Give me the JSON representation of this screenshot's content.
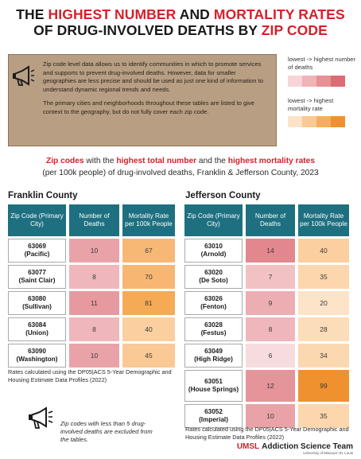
{
  "title": {
    "line1_pre": "THE ",
    "line1_red1": "HIGHEST NUMBER",
    "line1_mid": " AND ",
    "line1_red2": "MORTALITY RATES",
    "line2_pre": "OF DRUG-INVOLVED DEATHS BY ",
    "line2_red": "ZIP CODE"
  },
  "intro": {
    "para1": "Zip code level data allows us to identify communities in which to promote services and supports to prevent drug-involved deaths. However, data for smaller geographies are less precise and should be used as just one kind of information to understand dynamic regional trends and needs.",
    "para2": "The primary cities and neighborhoods throughout these tables are listed to give context to the geography, but do not fully cover each zip code."
  },
  "legend": {
    "deaths_title": "lowest -> highest number of deaths",
    "deaths_colors": [
      "#f7d4d6",
      "#f0b3b7",
      "#e79096",
      "#dc6c74"
    ],
    "rate_title": "lowest -> highest mortality rate",
    "rate_colors": [
      "#fde3c8",
      "#fbc993",
      "#f7ad60",
      "#f0912f"
    ]
  },
  "subheading": {
    "red1": "Zip codes",
    "t1": " with the ",
    "red2": "highest total number",
    "t2": " and the ",
    "red3": "highest mortality rates",
    "line2": "(per 100k people) of drug-involved deaths, Franklin & Jefferson County, 2023"
  },
  "headers": {
    "zip": "Zip Code (Primary City)",
    "deaths": "Number of Deaths",
    "rate": "Mortality Rate per 100k People"
  },
  "franklin": {
    "name": "Franklin County",
    "rows": [
      {
        "zip": "63069",
        "city": "(Pacific)",
        "deaths": "10",
        "rate": "67",
        "dcolor": "#e9a3a8",
        "rcolor": "#f7b876"
      },
      {
        "zip": "63077",
        "city": "(Saint Clair)",
        "deaths": "8",
        "rate": "70",
        "dcolor": "#efb7bb",
        "rcolor": "#f7b672"
      },
      {
        "zip": "63080",
        "city": "(Sullivan)",
        "deaths": "11",
        "rate": "81",
        "dcolor": "#e69aa0",
        "rcolor": "#f5aa56"
      },
      {
        "zip": "63084",
        "city": "(Union)",
        "deaths": "8",
        "rate": "40",
        "dcolor": "#efb7bb",
        "rcolor": "#fbcf9f"
      },
      {
        "zip": "63090",
        "city": "(Washington)",
        "deaths": "10",
        "rate": "45",
        "dcolor": "#e9a3a8",
        "rcolor": "#fac995"
      }
    ],
    "note": "Rates calculated using the DP05|ACS 5-Year Demographic and Housing Estimate Data Profiles (2022)"
  },
  "jefferson": {
    "name": "Jefferson County",
    "rows": [
      {
        "zip": "63010",
        "city": "(Arnold)",
        "deaths": "14",
        "rate": "40",
        "dcolor": "#e3878e",
        "rcolor": "#fbcf9f"
      },
      {
        "zip": "63020",
        "city": "(De Soto)",
        "deaths": "7",
        "rate": "35",
        "dcolor": "#f2c1c4",
        "rcolor": "#fcd7ae"
      },
      {
        "zip": "63026",
        "city": "(Fenton)",
        "deaths": "9",
        "rate": "20",
        "dcolor": "#ecaeb2",
        "rcolor": "#fde3c8"
      },
      {
        "zip": "63028",
        "city": "(Festus)",
        "deaths": "8",
        "rate": "28",
        "dcolor": "#efb7bb",
        "rcolor": "#fcddb9"
      },
      {
        "zip": "63049",
        "city": "(High Ridge)",
        "deaths": "6",
        "rate": "34",
        "dcolor": "#f6dcde",
        "rcolor": "#fcd8b1"
      },
      {
        "zip": "63051",
        "city": "(House Springs)",
        "deaths": "12",
        "rate": "99",
        "dcolor": "#e5949a",
        "rcolor": "#f0912f"
      },
      {
        "zip": "63052",
        "city": "(Imperial)",
        "deaths": "10",
        "rate": "35",
        "dcolor": "#e9a3a8",
        "rcolor": "#fcd7ae"
      }
    ],
    "note": "Rates calculated using the DP05|ACS 5-Year Demographic and Housing Estimate Data Profiles (2022)"
  },
  "footnote": "Zip codes with less than 5 drug-involved deaths are excluded from the tables.",
  "logo": {
    "mark": "UMSL",
    "team": "Addiction Science Team",
    "sub": "University of Missouri–St. Louis"
  }
}
